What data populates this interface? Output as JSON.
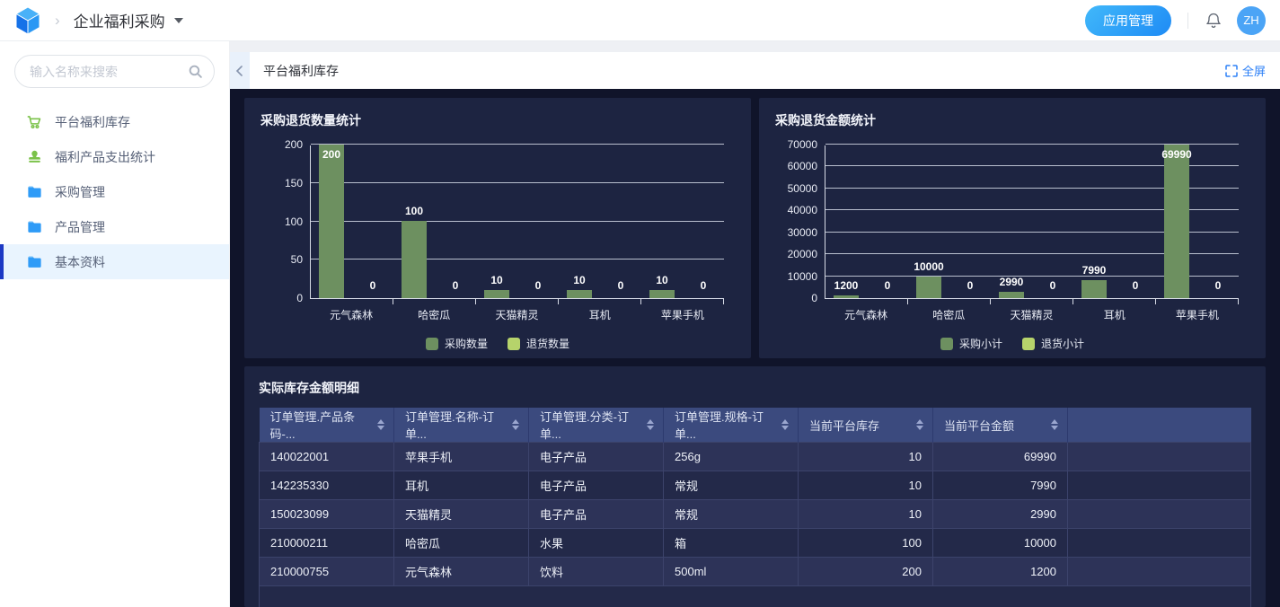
{
  "header": {
    "app_title": "企业福利采购",
    "app_manage_button": "应用管理",
    "avatar_text": "ZH"
  },
  "sidebar": {
    "search_placeholder": "输入名称来搜索",
    "items": [
      {
        "label": "平台福利库存",
        "icon": "cart-icon",
        "selected": false
      },
      {
        "label": "福利产品支出统计",
        "icon": "stamp-icon",
        "selected": false
      },
      {
        "label": "采购管理",
        "icon": "folder-icon",
        "selected": false
      },
      {
        "label": "产品管理",
        "icon": "folder-icon",
        "selected": false
      },
      {
        "label": "基本资料",
        "icon": "folder-icon",
        "selected": true
      }
    ]
  },
  "content_header": {
    "title": "平台福利库存",
    "fullscreen_label": "全屏"
  },
  "chart_data": [
    {
      "type": "bar",
      "title": "采购退货数量统计",
      "categories": [
        "元气森林",
        "哈密瓜",
        "天猫精灵",
        "耳机",
        "苹果手机"
      ],
      "series": [
        {
          "name": "采购数量",
          "color": "#6d9060",
          "values": [
            200,
            100,
            10,
            10,
            10
          ]
        },
        {
          "name": "退货数量",
          "color": "#b6d36b",
          "values": [
            0,
            0,
            0,
            0,
            0
          ]
        }
      ],
      "xlabel": "",
      "ylabel": "",
      "ylim": [
        0,
        200
      ],
      "yticks": [
        0,
        50,
        100,
        150,
        200
      ],
      "grid": true,
      "legend_position": "bottom"
    },
    {
      "type": "bar",
      "title": "采购退货金额统计",
      "categories": [
        "元气森林",
        "哈密瓜",
        "天猫精灵",
        "耳机",
        "苹果手机"
      ],
      "series": [
        {
          "name": "采购小计",
          "color": "#6d9060",
          "values": [
            1200,
            10000,
            2990,
            7990,
            69990
          ]
        },
        {
          "name": "退货小计",
          "color": "#b6d36b",
          "values": [
            0,
            0,
            0,
            0,
            0
          ]
        }
      ],
      "xlabel": "",
      "ylabel": "",
      "ylim": [
        0,
        70000
      ],
      "yticks": [
        0,
        10000,
        20000,
        30000,
        40000,
        50000,
        60000,
        70000
      ],
      "grid": true,
      "legend_position": "bottom"
    }
  ],
  "table": {
    "title": "实际库存金额明细",
    "columns": [
      {
        "label": "订单管理.产品条码-...",
        "sortable": true,
        "align": "left"
      },
      {
        "label": "订单管理.名称-订单...",
        "sortable": true,
        "align": "left"
      },
      {
        "label": "订单管理.分类-订单...",
        "sortable": true,
        "align": "left"
      },
      {
        "label": "订单管理.规格-订单...",
        "sortable": true,
        "align": "left"
      },
      {
        "label": "当前平台库存",
        "sortable": true,
        "align": "right"
      },
      {
        "label": "当前平台金额",
        "sortable": true,
        "align": "right"
      },
      {
        "label": "",
        "sortable": false,
        "align": "left"
      }
    ],
    "rows": [
      [
        "140022001",
        "苹果手机",
        "电子产品",
        "256g",
        "10",
        "69990",
        ""
      ],
      [
        "142235330",
        "耳机",
        "电子产品",
        "常规",
        "10",
        "7990",
        ""
      ],
      [
        "150023099",
        "天猫精灵",
        "电子产品",
        "常规",
        "10",
        "2990",
        ""
      ],
      [
        "210000211",
        "哈密瓜",
        "水果",
        "箱",
        "100",
        "10000",
        ""
      ],
      [
        "210000755",
        "元气森林",
        "饮料",
        "500ml",
        "200",
        "1200",
        ""
      ]
    ]
  },
  "colors": {
    "accent_blue": "#2d80f7",
    "bar_green": "#6d9060",
    "bar_light_green": "#b6d36b",
    "panel_bg": "#1d2441",
    "content_bg": "#10142a",
    "table_header_bg": "#3b4a7e",
    "selected_item_bar": "#1d39c4",
    "avatar_blue": "#4ba4f6"
  }
}
